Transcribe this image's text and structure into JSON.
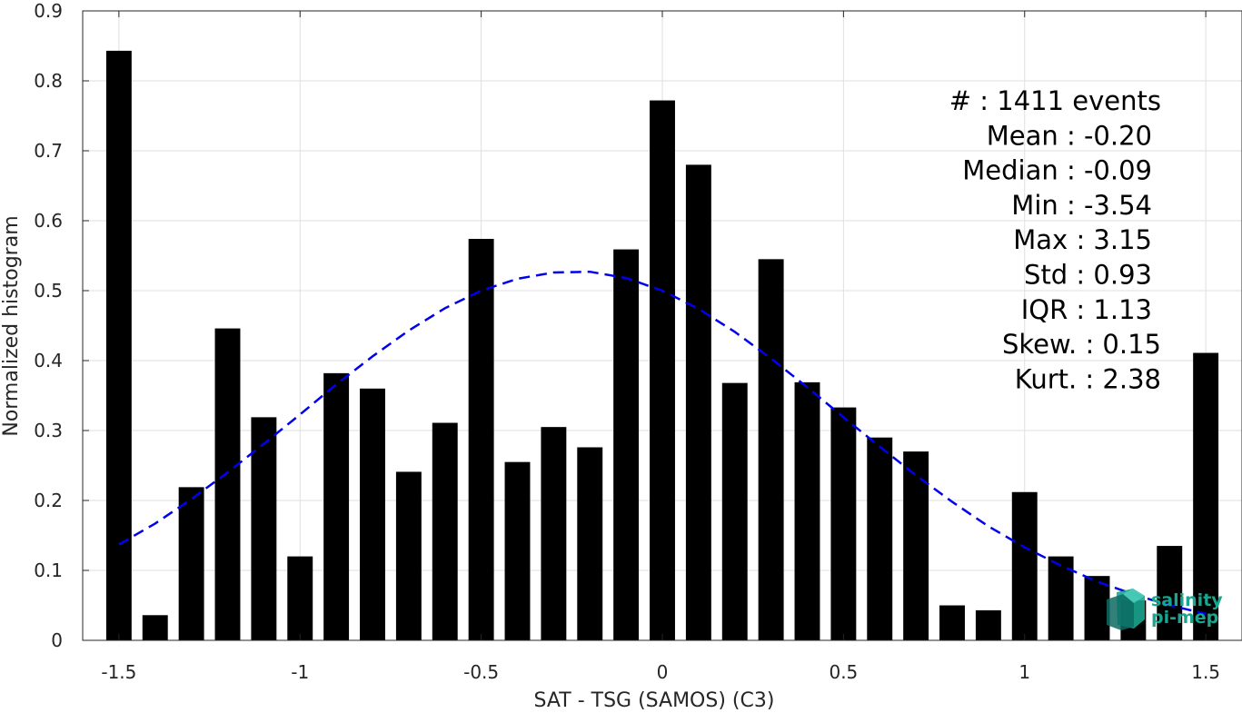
{
  "chart_data": {
    "type": "bar",
    "xlabel": "SAT - TSG (SAMOS) (C3)",
    "ylabel": "Normalized histogram",
    "xlim": [
      -1.6,
      1.6
    ],
    "ylim": [
      0,
      0.9
    ],
    "grid": true,
    "x_ticks": [
      -1.5,
      -1,
      -0.5,
      0,
      0.5,
      1,
      1.5
    ],
    "x_tick_labels": [
      "-1.5",
      "-1",
      "-0.5",
      "0",
      "0.5",
      "1",
      "1.5"
    ],
    "y_ticks": [
      0,
      0.1,
      0.2,
      0.3,
      0.4,
      0.5,
      0.6,
      0.7,
      0.8,
      0.9
    ],
    "y_tick_labels": [
      "0",
      "0.1",
      "0.2",
      "0.3",
      "0.4",
      "0.5",
      "0.6",
      "0.7",
      "0.8",
      "0.9"
    ],
    "bar_width": 0.07,
    "bars": {
      "x": [
        -1.5,
        -1.4,
        -1.3,
        -1.2,
        -1.1,
        -1.0,
        -0.9,
        -0.8,
        -0.7,
        -0.6,
        -0.5,
        -0.4,
        -0.3,
        -0.2,
        -0.1,
        0.0,
        0.1,
        0.2,
        0.3,
        0.4,
        0.5,
        0.6,
        0.7,
        0.8,
        0.9,
        1.0,
        1.1,
        1.2,
        1.3,
        1.4,
        1.5
      ],
      "values": [
        0.843,
        0.036,
        0.219,
        0.446,
        0.319,
        0.12,
        0.382,
        0.36,
        0.241,
        0.311,
        0.574,
        0.255,
        0.305,
        0.276,
        0.559,
        0.772,
        0.68,
        0.368,
        0.545,
        0.369,
        0.333,
        0.29,
        0.27,
        0.05,
        0.043,
        0.212,
        0.12,
        0.092,
        0.057,
        0.135,
        0.411
      ],
      "color": "#000000"
    },
    "fit_curve": {
      "style": "dashed",
      "color": "#0000ee",
      "x": [
        -1.5,
        -1.4,
        -1.3,
        -1.2,
        -1.1,
        -1.0,
        -0.9,
        -0.8,
        -0.7,
        -0.6,
        -0.5,
        -0.4,
        -0.3,
        -0.2,
        -0.1,
        0.0,
        0.1,
        0.2,
        0.3,
        0.4,
        0.5,
        0.6,
        0.7,
        0.8,
        0.9,
        1.0,
        1.1,
        1.2,
        1.3,
        1.4,
        1.5
      ],
      "y": [
        0.137,
        0.167,
        0.202,
        0.24,
        0.281,
        0.323,
        0.366,
        0.406,
        0.443,
        0.475,
        0.5,
        0.517,
        0.526,
        0.527,
        0.518,
        0.5,
        0.474,
        0.441,
        0.403,
        0.362,
        0.319,
        0.277,
        0.236,
        0.198,
        0.163,
        0.133,
        0.107,
        0.084,
        0.066,
        0.05,
        0.038
      ]
    },
    "annotations": [
      "#  : 1411 events",
      "Mean : -0.20",
      "Median : -0.09",
      "Min : -3.54",
      "Max : 3.15",
      "Std : 0.93",
      "IQR : 1.13",
      "Skew. : 0.15",
      "Kurt. : 2.38"
    ]
  },
  "logo": {
    "line1": "salinity",
    "line2": "pi-mep",
    "color": "#1aa58f"
  }
}
